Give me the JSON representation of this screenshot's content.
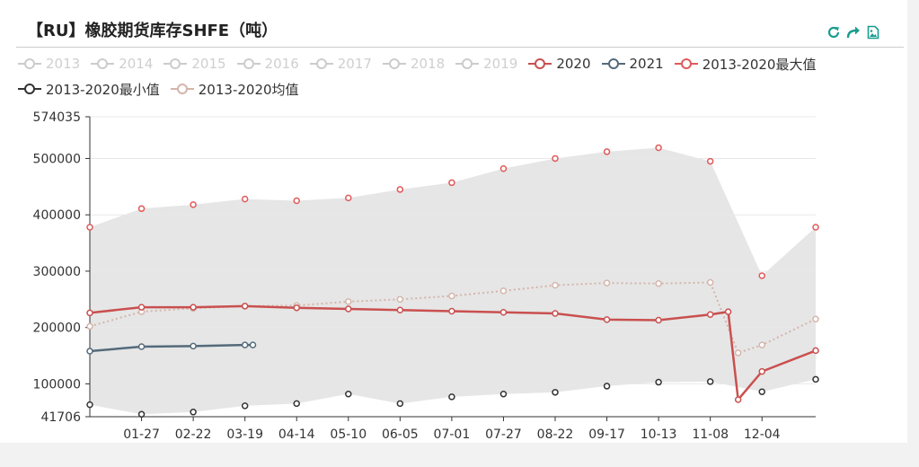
{
  "title": "【RU】橡胶期货库存SHFE（吨）",
  "toolbox": {
    "icons": [
      "refresh-icon",
      "share-icon",
      "save-image-icon"
    ],
    "color": "#1a9c8f"
  },
  "legend": {
    "items": [
      {
        "label": "2013",
        "active": false,
        "color": "#cccccc"
      },
      {
        "label": "2014",
        "active": false,
        "color": "#cccccc"
      },
      {
        "label": "2015",
        "active": false,
        "color": "#cccccc"
      },
      {
        "label": "2016",
        "active": false,
        "color": "#cccccc"
      },
      {
        "label": "2017",
        "active": false,
        "color": "#cccccc"
      },
      {
        "label": "2018",
        "active": false,
        "color": "#cccccc"
      },
      {
        "label": "2019",
        "active": false,
        "color": "#cccccc"
      },
      {
        "label": "2020",
        "active": true,
        "color": "#c9504f"
      },
      {
        "label": "2021",
        "active": true,
        "color": "#546a7b"
      },
      {
        "label": "2013-2020最大值",
        "active": true,
        "color": "#e05a5a"
      },
      {
        "label": "2013-2020最小值",
        "active": true,
        "color": "#333333"
      },
      {
        "label": "2013-2020均值",
        "active": true,
        "color": "#d4b5ab"
      }
    ]
  },
  "chart_data": {
    "type": "line",
    "title": "【RU】橡胶期货库存SHFE（吨）",
    "y_ticks": [
      "574035",
      "500000",
      "400000",
      "300000",
      "200000",
      "100000",
      "41706"
    ],
    "ylim": [
      41706,
      574035
    ],
    "x_ticks": [
      "01-27",
      "02-22",
      "03-19",
      "04-14",
      "05-10",
      "06-05",
      "07-01",
      "07-27",
      "08-22",
      "09-17",
      "10-13",
      "11-08",
      "12-04"
    ],
    "xlim": [
      "01-01",
      "12-31"
    ],
    "grid": true,
    "legend_position": "top",
    "series": [
      {
        "name": "2013-2020最大值",
        "color": "#e05a5a",
        "x": [
          "01-01",
          "01-27",
          "02-22",
          "03-19",
          "04-14",
          "05-10",
          "06-05",
          "07-01",
          "07-27",
          "08-22",
          "09-17",
          "10-13",
          "11-08",
          "12-04",
          "12-31"
        ],
        "values": [
          378000,
          411000,
          418000,
          428000,
          425000,
          430000,
          445000,
          457000,
          482000,
          500000,
          512000,
          519000,
          495000,
          292000,
          378000
        ]
      },
      {
        "name": "2013-2020最小值",
        "color": "#333333",
        "x": [
          "01-01",
          "01-27",
          "02-22",
          "03-19",
          "04-14",
          "05-10",
          "06-05",
          "07-01",
          "07-27",
          "08-22",
          "09-17",
          "10-13",
          "11-08",
          "12-04",
          "12-31"
        ],
        "values": [
          63000,
          46000,
          50000,
          61000,
          65000,
          82000,
          65000,
          77000,
          82000,
          85000,
          96000,
          103000,
          104000,
          86000,
          108000
        ]
      },
      {
        "name": "2013-2020均值",
        "color": "#d4b5ab",
        "x": [
          "01-01",
          "01-27",
          "02-22",
          "03-19",
          "04-14",
          "05-10",
          "06-05",
          "07-01",
          "07-27",
          "08-22",
          "09-17",
          "10-13",
          "11-08",
          "11-22",
          "12-04",
          "12-31"
        ],
        "values": [
          202000,
          228000,
          234000,
          238000,
          239000,
          246000,
          250000,
          256000,
          265000,
          275000,
          279000,
          278000,
          280000,
          155000,
          169000,
          215000
        ]
      },
      {
        "name": "2020",
        "color": "#c9504f",
        "x": [
          "01-01",
          "01-27",
          "02-22",
          "03-19",
          "04-14",
          "05-10",
          "06-05",
          "07-01",
          "07-27",
          "08-22",
          "09-17",
          "10-13",
          "11-08",
          "11-17",
          "11-22",
          "12-04",
          "12-31"
        ],
        "values": [
          226000,
          236000,
          236000,
          238000,
          235000,
          233000,
          231000,
          229000,
          227000,
          225000,
          214000,
          213000,
          223000,
          228000,
          72000,
          122000,
          159000
        ]
      },
      {
        "name": "2021",
        "color": "#546a7b",
        "x": [
          "01-01",
          "01-27",
          "02-22",
          "03-19",
          "03-23"
        ],
        "values": [
          158000,
          166000,
          167000,
          169000,
          169000
        ]
      }
    ]
  }
}
